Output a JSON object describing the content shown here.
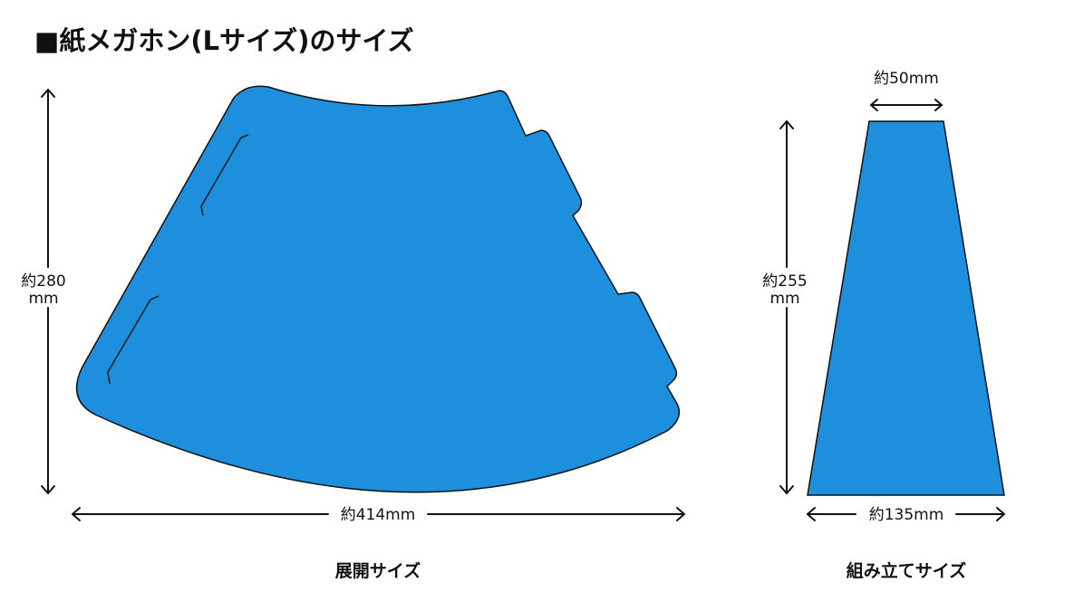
{
  "title": "■紙メガホン(Lサイズ)のサイズ",
  "unfolded": {
    "height_label_num": "約280",
    "height_label_unit": "mm",
    "width_label": "約414mm",
    "caption": "展開サイズ"
  },
  "assembled": {
    "top_label": "約50mm",
    "height_label_num": "約255",
    "height_label_unit": "mm",
    "bottom_label": "約135mm",
    "caption": "組み立てサイズ"
  },
  "colors": {
    "shape_fill": "#1d8fdc",
    "line": "#111111"
  }
}
